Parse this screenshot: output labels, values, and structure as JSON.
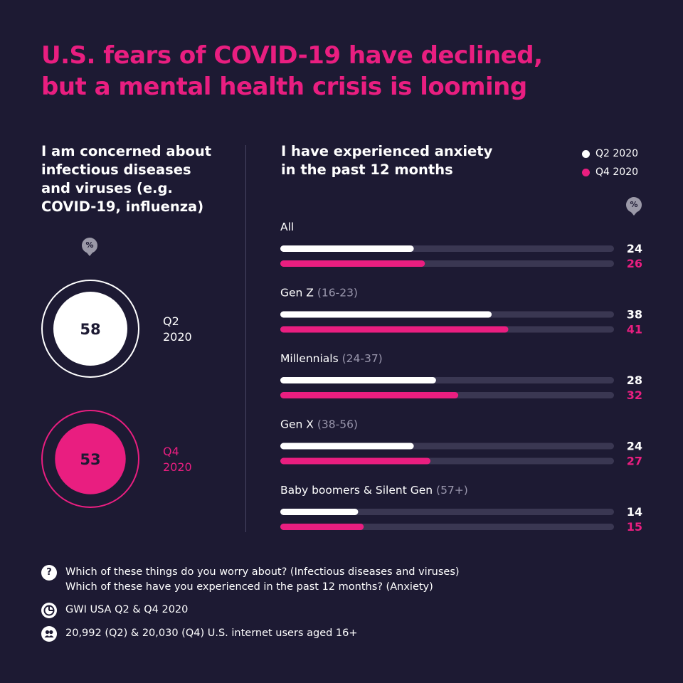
{
  "title_line1": "U.S. fears of COVID-19 have declined,",
  "title_line2": "but a mental health crisis is looming",
  "left": {
    "heading_lines": [
      "I am concerned about",
      "infectious diseases",
      "and viruses (e.g.",
      "COVID-19, influenza)"
    ],
    "unit_badge": "%"
  },
  "right": {
    "heading_lines": [
      "I have experienced anxiety",
      "in the past 12 months"
    ],
    "unit_badge": "%",
    "legend": [
      {
        "label": "Q2 2020",
        "color": "#ffffff"
      },
      {
        "label": "Q4 2020",
        "color": "#e91e80"
      }
    ]
  },
  "colors": {
    "background": "#1d1a33",
    "accent": "#e91e80",
    "q2": "#ffffff",
    "track": "#3a3752",
    "muted_text": "#9a97ad"
  },
  "chart_data": [
    {
      "type": "bubble",
      "categories": [
        "Q2 2020",
        "Q4 2020"
      ],
      "values": [
        58,
        53
      ],
      "label_lines": [
        [
          "Q2",
          "2020"
        ],
        [
          "Q4",
          "2020"
        ]
      ],
      "unit": "%"
    },
    {
      "type": "bar",
      "orientation": "horizontal",
      "unit": "%",
      "xlim": [
        0,
        60
      ],
      "categories": [
        {
          "name": "All",
          "range": ""
        },
        {
          "name": "Gen Z",
          "range": "(16-23)"
        },
        {
          "name": "Millennials",
          "range": "(24-37)"
        },
        {
          "name": "Gen X",
          "range": "(38-56)"
        },
        {
          "name": "Baby boomers & Silent Gen",
          "range": "(57+)"
        }
      ],
      "series": [
        {
          "name": "Q2 2020",
          "values": [
            24,
            38,
            28,
            24,
            14
          ]
        },
        {
          "name": "Q4 2020",
          "values": [
            26,
            41,
            32,
            27,
            15
          ]
        }
      ]
    }
  ],
  "notes": [
    {
      "icon": "question-icon",
      "glyph": "?",
      "lines": [
        "Which of these things do you worry about? (Infectious diseases and viruses)",
        "Which of these have you experienced in the past 12 months? (Anxiety)"
      ]
    },
    {
      "icon": "gwi-logo-icon",
      "glyph": "",
      "lines": [
        "GWI USA Q2 & Q4 2020"
      ]
    },
    {
      "icon": "people-icon",
      "glyph": "",
      "lines": [
        "20,992 (Q2) & 20,030 (Q4) U.S. internet users aged 16+"
      ]
    }
  ]
}
